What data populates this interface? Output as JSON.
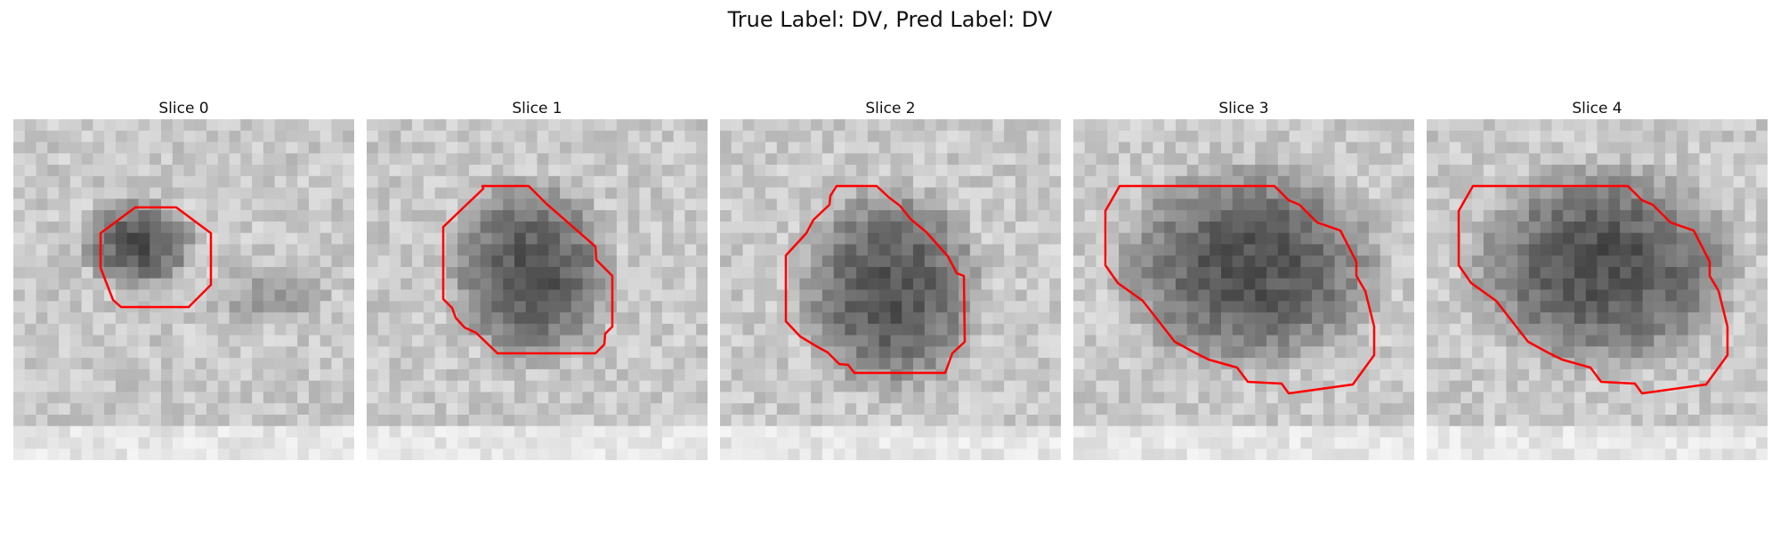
{
  "figure": {
    "title": "True Label: DV, Pred Label: DV",
    "contour_color": "#ff0000"
  },
  "slices": [
    {
      "label": "Slice 0"
    },
    {
      "label": "Slice 1"
    },
    {
      "label": "Slice 2"
    },
    {
      "label": "Slice 3"
    },
    {
      "label": "Slice 4"
    }
  ]
}
